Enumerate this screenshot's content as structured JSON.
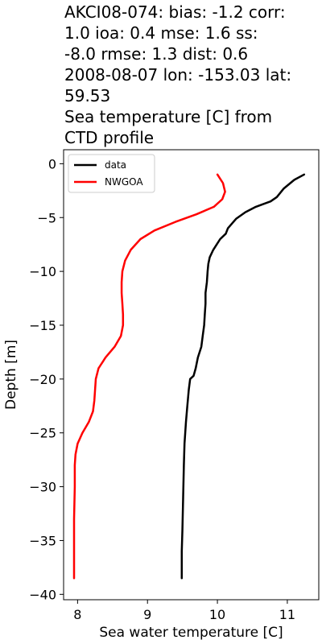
{
  "chart_data": {
    "type": "line",
    "title": "AKCI08-074: bias: -1.2  corr: 1.0  ioa: 0.4  mse: 1.6  ss: -8.0  rmse: 1.3  dist: 0.6 2008-08-07 lon: -153.03 lat: 59.53 Sea temperature [C] from CTD profile",
    "title_lines": [
      "AKCI08-074: bias: -1.2  corr:",
      "1.0  ioa: 0.4  mse: 1.6  ss:",
      "-8.0  rmse: 1.3  dist: 0.6",
      "2008-08-07 lon: -153.03 lat:",
      "59.53",
      "Sea temperature [C] from",
      "CTD profile"
    ],
    "xlabel": "Sea water temperature [C]",
    "ylabel": "Depth [m]",
    "xlim": [
      7.8,
      11.45
    ],
    "ylim": [
      -40.5,
      1.3
    ],
    "xticks": [
      8,
      9,
      10,
      11
    ],
    "xtick_labels": [
      "8",
      "9",
      "10",
      "11"
    ],
    "yticks": [
      0,
      -5,
      -10,
      -15,
      -20,
      -25,
      -30,
      -35,
      -40
    ],
    "ytick_labels": [
      "0",
      "−5",
      "−10",
      "−15",
      "−20",
      "−25",
      "−30",
      "−35",
      "−40"
    ],
    "grid": false,
    "legend_position": "top-left",
    "series": [
      {
        "name": "data",
        "color": "#000000",
        "points": [
          [
            11.24,
            -1.0
          ],
          [
            11.1,
            -1.5
          ],
          [
            10.95,
            -2.3
          ],
          [
            10.85,
            -3.1
          ],
          [
            10.76,
            -3.5
          ],
          [
            10.55,
            -4.0
          ],
          [
            10.4,
            -4.5
          ],
          [
            10.27,
            -5.1
          ],
          [
            10.15,
            -6.0
          ],
          [
            10.12,
            -6.5
          ],
          [
            10.04,
            -7.0
          ],
          [
            9.99,
            -7.5
          ],
          [
            9.94,
            -8.0
          ],
          [
            9.89,
            -8.7
          ],
          [
            9.87,
            -9.3
          ],
          [
            9.86,
            -10.0
          ],
          [
            9.85,
            -11.0
          ],
          [
            9.83,
            -12.0
          ],
          [
            9.83,
            -13.0
          ],
          [
            9.82,
            -14.0
          ],
          [
            9.81,
            -15.0
          ],
          [
            9.79,
            -16.0
          ],
          [
            9.77,
            -17.0
          ],
          [
            9.72,
            -18.0
          ],
          [
            9.69,
            -19.0
          ],
          [
            9.66,
            -19.7
          ],
          [
            9.61,
            -20.0
          ],
          [
            9.59,
            -21.0
          ],
          [
            9.57,
            -22.5
          ],
          [
            9.55,
            -24.0
          ],
          [
            9.53,
            -26.0
          ],
          [
            9.52,
            -28.0
          ],
          [
            9.51,
            -31.0
          ],
          [
            9.5,
            -34.0
          ],
          [
            9.49,
            -36.0
          ],
          [
            9.49,
            -38.5
          ]
        ]
      },
      {
        "name": "NWGOA",
        "color": "#ff0000",
        "points": [
          [
            10.0,
            -1.0
          ],
          [
            10.08,
            -1.8
          ],
          [
            10.11,
            -2.6
          ],
          [
            10.07,
            -3.3
          ],
          [
            9.95,
            -4.0
          ],
          [
            9.7,
            -4.7
          ],
          [
            9.4,
            -5.4
          ],
          [
            9.1,
            -6.2
          ],
          [
            8.9,
            -7.0
          ],
          [
            8.76,
            -8.0
          ],
          [
            8.68,
            -9.0
          ],
          [
            8.64,
            -10.0
          ],
          [
            8.63,
            -11.0
          ],
          [
            8.63,
            -12.0
          ],
          [
            8.64,
            -13.0
          ],
          [
            8.65,
            -14.0
          ],
          [
            8.65,
            -15.0
          ],
          [
            8.62,
            -16.0
          ],
          [
            8.53,
            -17.0
          ],
          [
            8.4,
            -18.0
          ],
          [
            8.3,
            -19.0
          ],
          [
            8.26,
            -20.0
          ],
          [
            8.25,
            -21.0
          ],
          [
            8.24,
            -22.0
          ],
          [
            8.22,
            -23.0
          ],
          [
            8.16,
            -24.0
          ],
          [
            8.07,
            -25.0
          ],
          [
            8.0,
            -26.0
          ],
          [
            7.97,
            -27.0
          ],
          [
            7.96,
            -28.0
          ],
          [
            7.96,
            -30.0
          ],
          [
            7.95,
            -33.0
          ],
          [
            7.95,
            -36.0
          ],
          [
            7.95,
            -38.5
          ]
        ]
      }
    ]
  }
}
